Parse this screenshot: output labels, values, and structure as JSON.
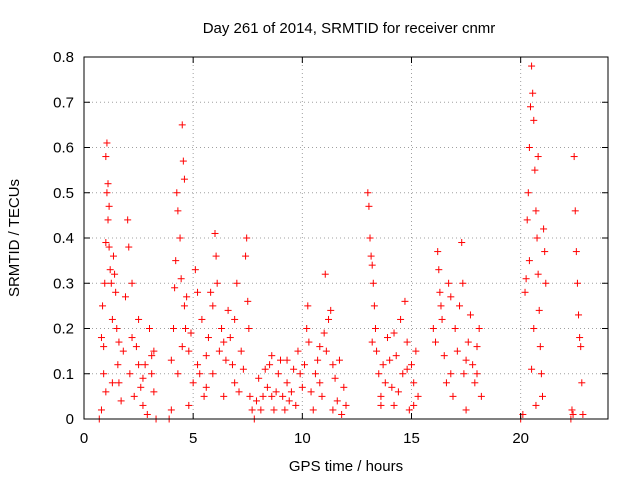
{
  "chart_data": {
    "type": "scatter",
    "title": "Day 261 of 2014, SRMTID for receiver cnmr",
    "xlabel": "GPS time / hours",
    "ylabel": "SRMTID / TECUs",
    "xlim": [
      0,
      24
    ],
    "ylim": [
      0,
      0.8
    ],
    "x_ticks": [
      0,
      5,
      10,
      15,
      20
    ],
    "x_tick_labels": [
      "0",
      "5",
      "10",
      "15",
      "20"
    ],
    "y_ticks": [
      0,
      0.1,
      0.2,
      0.3,
      0.4,
      0.5,
      0.6,
      0.7,
      0.8
    ],
    "y_tick_labels": [
      "0",
      "0.1",
      "0.2",
      "0.3",
      "0.4",
      "0.5",
      "0.6",
      "0.7",
      "0.8"
    ],
    "grid": true,
    "marker": "+",
    "color": "#ff0000",
    "series": [
      {
        "name": "SRMTID",
        "points": [
          [
            0.7,
            0.0
          ],
          [
            0.8,
            0.02
          ],
          [
            0.8,
            0.18
          ],
          [
            0.85,
            0.25
          ],
          [
            0.9,
            0.1
          ],
          [
            0.9,
            0.16
          ],
          [
            0.95,
            0.3
          ],
          [
            1.0,
            0.39
          ],
          [
            1.0,
            0.58
          ],
          [
            1.05,
            0.61
          ],
          [
            1.05,
            0.5
          ],
          [
            1.1,
            0.52
          ],
          [
            1.1,
            0.44
          ],
          [
            1.15,
            0.47
          ],
          [
            1.15,
            0.38
          ],
          [
            1.2,
            0.33
          ],
          [
            1.25,
            0.3
          ],
          [
            1.3,
            0.22
          ],
          [
            1.35,
            0.36
          ],
          [
            1.4,
            0.32
          ],
          [
            1.45,
            0.28
          ],
          [
            1.5,
            0.2
          ],
          [
            1.55,
            0.12
          ],
          [
            1.6,
            0.08
          ],
          [
            1.7,
            0.04
          ],
          [
            1.8,
            0.15
          ],
          [
            1.9,
            0.27
          ],
          [
            2.0,
            0.44
          ],
          [
            2.05,
            0.38
          ],
          [
            2.1,
            0.1
          ],
          [
            2.2,
            0.18
          ],
          [
            2.3,
            0.05
          ],
          [
            2.4,
            0.16
          ],
          [
            2.5,
            0.22
          ],
          [
            2.6,
            0.07
          ],
          [
            2.7,
            0.03
          ],
          [
            2.8,
            0.12
          ],
          [
            2.9,
            0.01
          ],
          [
            3.0,
            0.2
          ],
          [
            3.1,
            0.1
          ],
          [
            3.2,
            0.06
          ],
          [
            3.3,
            0.0
          ],
          [
            3.1,
            0.14
          ],
          [
            2.5,
            0.12
          ],
          [
            1.3,
            0.08
          ],
          [
            1.0,
            0.06
          ],
          [
            1.6,
            0.17
          ],
          [
            2.2,
            0.3
          ],
          [
            2.7,
            0.09
          ],
          [
            3.2,
            0.15
          ],
          [
            3.9,
            0.0
          ],
          [
            4.0,
            0.02
          ],
          [
            4.0,
            0.13
          ],
          [
            4.1,
            0.2
          ],
          [
            4.15,
            0.29
          ],
          [
            4.2,
            0.35
          ],
          [
            4.25,
            0.5
          ],
          [
            4.3,
            0.46
          ],
          [
            4.4,
            0.4
          ],
          [
            4.45,
            0.31
          ],
          [
            4.5,
            0.65
          ],
          [
            4.55,
            0.57
          ],
          [
            4.6,
            0.53
          ],
          [
            4.6,
            0.25
          ],
          [
            4.65,
            0.2
          ],
          [
            4.7,
            0.27
          ],
          [
            4.8,
            0.15
          ],
          [
            4.9,
            0.19
          ],
          [
            5.0,
            0.08
          ],
          [
            5.1,
            0.33
          ],
          [
            5.2,
            0.12
          ],
          [
            5.3,
            0.1
          ],
          [
            5.4,
            0.22
          ],
          [
            5.5,
            0.05
          ],
          [
            5.6,
            0.07
          ],
          [
            5.7,
            0.18
          ],
          [
            5.8,
            0.28
          ],
          [
            5.9,
            0.1
          ],
          [
            6.0,
            0.41
          ],
          [
            6.05,
            0.36
          ],
          [
            6.1,
            0.3
          ],
          [
            6.2,
            0.15
          ],
          [
            6.3,
            0.2
          ],
          [
            6.4,
            0.05
          ],
          [
            6.5,
            0.13
          ],
          [
            6.6,
            0.24
          ],
          [
            6.7,
            0.18
          ],
          [
            6.8,
            0.12
          ],
          [
            6.9,
            0.08
          ],
          [
            7.0,
            0.3
          ],
          [
            7.1,
            0.06
          ],
          [
            7.2,
            0.15
          ],
          [
            7.3,
            0.11
          ],
          [
            7.4,
            0.36
          ],
          [
            7.45,
            0.4
          ],
          [
            7.5,
            0.26
          ],
          [
            7.55,
            0.2
          ],
          [
            7.6,
            0.05
          ],
          [
            7.7,
            0.02
          ],
          [
            4.3,
            0.1
          ],
          [
            4.8,
            0.03
          ],
          [
            5.2,
            0.28
          ],
          [
            5.6,
            0.14
          ],
          [
            6.4,
            0.17
          ],
          [
            6.9,
            0.22
          ],
          [
            4.5,
            0.16
          ],
          [
            5.9,
            0.25
          ],
          [
            7.8,
            0.0
          ],
          [
            7.9,
            0.04
          ],
          [
            8.0,
            0.09
          ],
          [
            8.1,
            0.02
          ],
          [
            8.2,
            0.05
          ],
          [
            8.3,
            0.11
          ],
          [
            8.4,
            0.07
          ],
          [
            8.5,
            0.12
          ],
          [
            8.6,
            0.14
          ],
          [
            8.7,
            0.02
          ],
          [
            8.8,
            0.06
          ],
          [
            8.9,
            0.1
          ],
          [
            9.0,
            0.13
          ],
          [
            9.1,
            0.05
          ],
          [
            9.2,
            0.02
          ],
          [
            9.3,
            0.08
          ],
          [
            9.4,
            0.04
          ],
          [
            9.5,
            0.06
          ],
          [
            9.6,
            0.11
          ],
          [
            9.7,
            0.03
          ],
          [
            9.8,
            0.15
          ],
          [
            9.9,
            0.1
          ],
          [
            10.0,
            0.07
          ],
          [
            10.1,
            0.12
          ],
          [
            10.2,
            0.2
          ],
          [
            10.25,
            0.25
          ],
          [
            10.3,
            0.17
          ],
          [
            10.4,
            0.06
          ],
          [
            10.5,
            0.02
          ],
          [
            10.6,
            0.1
          ],
          [
            10.7,
            0.13
          ],
          [
            10.8,
            0.08
          ],
          [
            10.9,
            0.05
          ],
          [
            11.0,
            0.19
          ],
          [
            11.05,
            0.32
          ],
          [
            11.1,
            0.15
          ],
          [
            11.2,
            0.22
          ],
          [
            11.3,
            0.24
          ],
          [
            11.4,
            0.12
          ],
          [
            11.5,
            0.09
          ],
          [
            11.6,
            0.04
          ],
          [
            11.7,
            0.13
          ],
          [
            11.8,
            0.01
          ],
          [
            11.9,
            0.07
          ],
          [
            12.0,
            0.03
          ],
          [
            8.6,
            0.05
          ],
          [
            9.3,
            0.13
          ],
          [
            10.8,
            0.16
          ],
          [
            11.4,
            0.02
          ],
          [
            13.0,
            0.5
          ],
          [
            13.05,
            0.47
          ],
          [
            13.1,
            0.4
          ],
          [
            13.15,
            0.36
          ],
          [
            13.2,
            0.34
          ],
          [
            13.25,
            0.3
          ],
          [
            13.3,
            0.25
          ],
          [
            13.35,
            0.2
          ],
          [
            13.4,
            0.15
          ],
          [
            13.5,
            0.1
          ],
          [
            13.6,
            0.05
          ],
          [
            13.7,
            0.12
          ],
          [
            13.8,
            0.08
          ],
          [
            13.9,
            0.18
          ],
          [
            14.0,
            0.13
          ],
          [
            14.1,
            0.07
          ],
          [
            14.2,
            0.03
          ],
          [
            14.3,
            0.14
          ],
          [
            14.4,
            0.06
          ],
          [
            14.5,
            0.22
          ],
          [
            14.6,
            0.1
          ],
          [
            14.7,
            0.26
          ],
          [
            14.8,
            0.17
          ],
          [
            14.9,
            0.02
          ],
          [
            15.0,
            0.12
          ],
          [
            15.1,
            0.08
          ],
          [
            15.2,
            0.15
          ],
          [
            15.3,
            0.05
          ],
          [
            13.2,
            0.17
          ],
          [
            13.6,
            0.03
          ],
          [
            14.2,
            0.19
          ],
          [
            14.8,
            0.11
          ],
          [
            15.1,
            0.03
          ],
          [
            16.0,
            0.2
          ],
          [
            16.1,
            0.17
          ],
          [
            16.2,
            0.37
          ],
          [
            16.25,
            0.33
          ],
          [
            16.3,
            0.28
          ],
          [
            16.35,
            0.25
          ],
          [
            16.4,
            0.22
          ],
          [
            16.5,
            0.14
          ],
          [
            16.6,
            0.08
          ],
          [
            16.7,
            0.3
          ],
          [
            16.8,
            0.1
          ],
          [
            16.9,
            0.05
          ],
          [
            17.0,
            0.2
          ],
          [
            17.1,
            0.15
          ],
          [
            17.2,
            0.25
          ],
          [
            17.3,
            0.39
          ],
          [
            17.35,
            0.3
          ],
          [
            17.4,
            0.1
          ],
          [
            17.5,
            0.02
          ],
          [
            17.6,
            0.17
          ],
          [
            17.7,
            0.23
          ],
          [
            17.8,
            0.12
          ],
          [
            17.9,
            0.08
          ],
          [
            18.0,
            0.16
          ],
          [
            18.1,
            0.2
          ],
          [
            18.2,
            0.05
          ],
          [
            16.8,
            0.27
          ],
          [
            17.5,
            0.13
          ],
          [
            18.0,
            0.1
          ],
          [
            20.0,
            0.0
          ],
          [
            20.1,
            0.01
          ],
          [
            20.2,
            0.28
          ],
          [
            20.25,
            0.31
          ],
          [
            20.3,
            0.44
          ],
          [
            20.35,
            0.5
          ],
          [
            20.4,
            0.6
          ],
          [
            20.45,
            0.69
          ],
          [
            20.5,
            0.78
          ],
          [
            20.55,
            0.72
          ],
          [
            20.6,
            0.66
          ],
          [
            20.65,
            0.55
          ],
          [
            20.7,
            0.46
          ],
          [
            20.75,
            0.4
          ],
          [
            20.8,
            0.32
          ],
          [
            20.85,
            0.24
          ],
          [
            20.9,
            0.16
          ],
          [
            20.95,
            0.1
          ],
          [
            21.0,
            0.05
          ],
          [
            21.05,
            0.42
          ],
          [
            21.1,
            0.37
          ],
          [
            21.15,
            0.3
          ],
          [
            20.6,
            0.2
          ],
          [
            20.5,
            0.11
          ],
          [
            20.7,
            0.03
          ],
          [
            20.8,
            0.58
          ],
          [
            20.4,
            0.35
          ],
          [
            22.3,
            0.0
          ],
          [
            22.35,
            0.02
          ],
          [
            22.4,
            0.01
          ],
          [
            22.45,
            0.58
          ],
          [
            22.5,
            0.46
          ],
          [
            22.55,
            0.37
          ],
          [
            22.6,
            0.3
          ],
          [
            22.65,
            0.23
          ],
          [
            22.7,
            0.18
          ],
          [
            22.75,
            0.16
          ],
          [
            22.8,
            0.08
          ],
          [
            22.85,
            0.01
          ]
        ]
      }
    ]
  }
}
